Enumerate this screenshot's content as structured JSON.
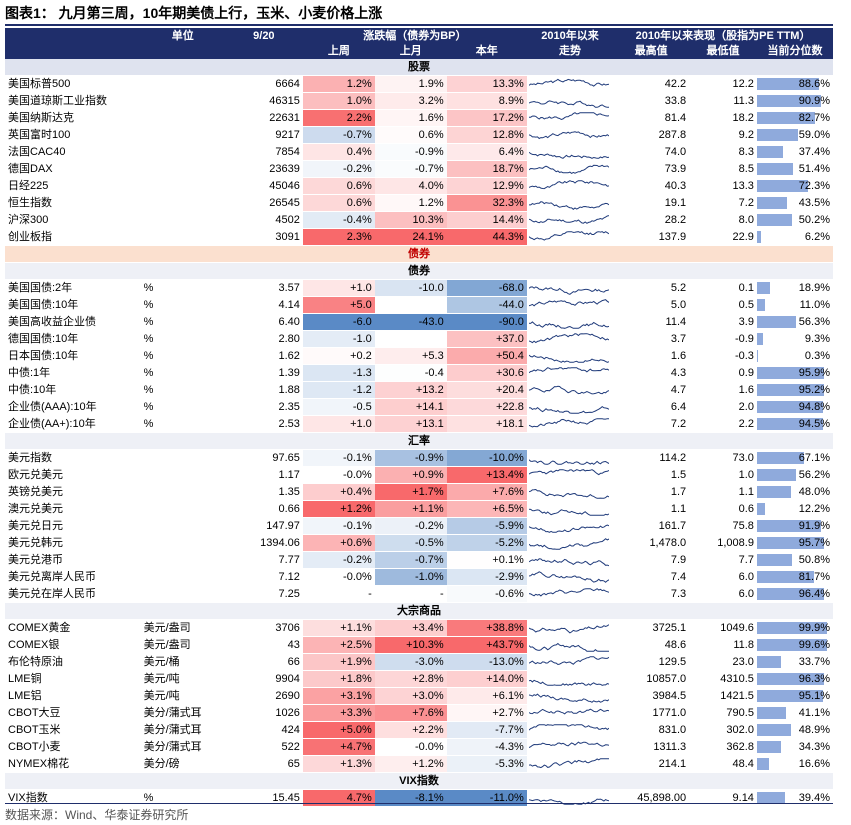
{
  "title": "图表1：  九月第三周，10年期美债上行，玉米、小麦价格上涨",
  "footer": "数据来源：Wind、华泰证券研究所",
  "header": {
    "unit": "单位",
    "date": "9/20",
    "change_group": "涨跌幅（债券为BP）",
    "since2010": "2010年以来",
    "perf_group": "2010年以来表现（股指为PE TTM）",
    "last_week": "上周",
    "last_month": "上月",
    "ytd": "本年",
    "trend": "走势",
    "high": "最高值",
    "low": "最低值",
    "pct": "当前分位数"
  },
  "colors": {
    "red": "#f8696b",
    "blue": "#5a8ac6",
    "bar": "#8faadc",
    "header": "#1f2e6b"
  },
  "sections": [
    {
      "title": "股票",
      "style": "main",
      "rows": [
        {
          "name": "美国标普500",
          "unit": "",
          "value": "6664",
          "wk": "1.2%",
          "mo": "1.9%",
          "ytd": "13.3%",
          "wkv": 1.2,
          "mov": 1.9,
          "ytdv": 13.3,
          "high": "42.2",
          "low": "12.2",
          "pct": "88.6%",
          "pctv": 88.6
        },
        {
          "name": "美国道琼斯工业指数",
          "unit": "",
          "value": "46315",
          "wk": "1.0%",
          "mo": "3.2%",
          "ytd": "8.9%",
          "wkv": 1.0,
          "mov": 3.2,
          "ytdv": 8.9,
          "high": "33.8",
          "low": "11.3",
          "pct": "90.9%",
          "pctv": 90.9
        },
        {
          "name": "美国纳斯达克",
          "unit": "",
          "value": "22631",
          "wk": "2.2%",
          "mo": "1.6%",
          "ytd": "17.2%",
          "wkv": 2.2,
          "mov": 1.6,
          "ytdv": 17.2,
          "high": "81.4",
          "low": "18.2",
          "pct": "82.7%",
          "pctv": 82.7
        },
        {
          "name": "英国富时100",
          "unit": "",
          "value": "9217",
          "wk": "-0.7%",
          "mo": "0.6%",
          "ytd": "12.8%",
          "wkv": -0.7,
          "mov": 0.6,
          "ytdv": 12.8,
          "high": "287.8",
          "low": "9.2",
          "pct": "59.0%",
          "pctv": 59.0
        },
        {
          "name": "法国CAC40",
          "unit": "",
          "value": "7854",
          "wk": "0.4%",
          "mo": "-0.9%",
          "ytd": "6.4%",
          "wkv": 0.4,
          "mov": -0.9,
          "ytdv": 6.4,
          "high": "74.0",
          "low": "8.3",
          "pct": "37.4%",
          "pctv": 37.4
        },
        {
          "name": "德国DAX",
          "unit": "",
          "value": "23639",
          "wk": "-0.2%",
          "mo": "-0.7%",
          "ytd": "18.7%",
          "wkv": -0.2,
          "mov": -0.7,
          "ytdv": 18.7,
          "high": "73.9",
          "low": "8.5",
          "pct": "51.4%",
          "pctv": 51.4
        },
        {
          "name": "日经225",
          "unit": "",
          "value": "45046",
          "wk": "0.6%",
          "mo": "4.0%",
          "ytd": "12.9%",
          "wkv": 0.6,
          "mov": 4.0,
          "ytdv": 12.9,
          "high": "40.3",
          "low": "13.3",
          "pct": "72.3%",
          "pctv": 72.3
        },
        {
          "name": "恒生指数",
          "unit": "",
          "value": "26545",
          "wk": "0.6%",
          "mo": "1.2%",
          "ytd": "32.3%",
          "wkv": 0.6,
          "mov": 1.2,
          "ytdv": 32.3,
          "high": "19.1",
          "low": "7.2",
          "pct": "43.5%",
          "pctv": 43.5
        },
        {
          "name": "沪深300",
          "unit": "",
          "value": "4502",
          "wk": "-0.4%",
          "mo": "10.3%",
          "ytd": "14.4%",
          "wkv": -0.4,
          "mov": 10.3,
          "ytdv": 14.4,
          "high": "28.2",
          "low": "8.0",
          "pct": "50.2%",
          "pctv": 50.2
        },
        {
          "name": "创业板指",
          "unit": "",
          "value": "3091",
          "wk": "2.3%",
          "mo": "24.1%",
          "ytd": "44.3%",
          "wkv": 2.3,
          "mov": 24.1,
          "ytdv": 44.3,
          "high": "137.9",
          "low": "22.9",
          "pct": "6.2%",
          "pctv": 6.2
        }
      ]
    },
    {
      "title": "债券",
      "style": "bond",
      "rows": []
    },
    {
      "title": "债券",
      "style": "sub",
      "rows": [
        {
          "name": "美国国债:2年",
          "unit": "%",
          "value": "3.57",
          "wk": "+1.0",
          "mo": "-10.0",
          "ytd": "-68.0",
          "wkv": 1.0,
          "mov": -10.0,
          "ytdv": -68.0,
          "high": "5.2",
          "low": "0.1",
          "pct": "18.9%",
          "pctv": 18.9
        },
        {
          "name": "美国国债:10年",
          "unit": "%",
          "value": "4.14",
          "wk": "+5.0",
          "mo": "",
          "ytd": "-44.0",
          "wkv": 5.0,
          "mov": 0,
          "ytdv": -44.0,
          "high": "5.0",
          "low": "0.5",
          "pct": "11.0%",
          "pctv": 11.0
        },
        {
          "name": "美国高收益企业债",
          "unit": "%",
          "value": "6.40",
          "wk": "-6.0",
          "mo": "-43.0",
          "ytd": "-90.0",
          "wkv": -6.0,
          "mov": -43.0,
          "ytdv": -90.0,
          "high": "11.4",
          "low": "3.9",
          "pct": "56.3%",
          "pctv": 56.3
        },
        {
          "name": "德国国债:10年",
          "unit": "%",
          "value": "2.80",
          "wk": "-1.0",
          "mo": "",
          "ytd": "+37.0",
          "wkv": -1.0,
          "mov": 0,
          "ytdv": 37.0,
          "high": "3.7",
          "low": "-0.9",
          "pct": "9.3%",
          "pctv": 9.3
        },
        {
          "name": "日本国债:10年",
          "unit": "%",
          "value": "1.62",
          "wk": "+0.2",
          "mo": "+5.3",
          "ytd": "+50.4",
          "wkv": 0.2,
          "mov": 5.3,
          "ytdv": 50.4,
          "high": "1.6",
          "low": "-0.3",
          "pct": "0.3%",
          "pctv": 0.3
        },
        {
          "name": "中债:1年",
          "unit": "%",
          "value": "1.39",
          "wk": "-1.3",
          "mo": "-0.4",
          "ytd": "+30.6",
          "wkv": -1.3,
          "mov": -0.4,
          "ytdv": 30.6,
          "high": "4.3",
          "low": "0.9",
          "pct": "95.9%",
          "pctv": 95.9
        },
        {
          "name": "中债:10年",
          "unit": "%",
          "value": "1.88",
          "wk": "-1.2",
          "mo": "+13.2",
          "ytd": "+20.4",
          "wkv": -1.2,
          "mov": 13.2,
          "ytdv": 20.4,
          "high": "4.7",
          "low": "1.6",
          "pct": "95.2%",
          "pctv": 95.2
        },
        {
          "name": "企业债(AAA):10年",
          "unit": "%",
          "value": "2.35",
          "wk": "-0.5",
          "mo": "+14.1",
          "ytd": "+22.8",
          "wkv": -0.5,
          "mov": 14.1,
          "ytdv": 22.8,
          "high": "6.4",
          "low": "2.0",
          "pct": "94.8%",
          "pctv": 94.8
        },
        {
          "name": "企业债(AA+):10年",
          "unit": "%",
          "value": "2.53",
          "wk": "+1.0",
          "mo": "+13.1",
          "ytd": "+18.1",
          "wkv": 1.0,
          "mov": 13.1,
          "ytdv": 18.1,
          "high": "7.2",
          "low": "2.2",
          "pct": "94.5%",
          "pctv": 94.5
        }
      ]
    },
    {
      "title": "汇率",
      "style": "sub",
      "rows": [
        {
          "name": "美元指数",
          "unit": "",
          "value": "97.65",
          "wk": "-0.1%",
          "mo": "-0.9%",
          "ytd": "-10.0%",
          "wkv": -0.1,
          "mov": -0.9,
          "ytdv": -10.0,
          "high": "114.2",
          "low": "73.0",
          "pct": "67.1%",
          "pctv": 67.1
        },
        {
          "name": "欧元兑美元",
          "unit": "",
          "value": "1.17",
          "wk": "-0.0%",
          "mo": "+0.9%",
          "ytd": "+13.4%",
          "wkv": -0.0,
          "mov": 0.9,
          "ytdv": 13.4,
          "high": "1.5",
          "low": "1.0",
          "pct": "56.2%",
          "pctv": 56.2
        },
        {
          "name": "英镑兑美元",
          "unit": "",
          "value": "1.35",
          "wk": "+0.4%",
          "mo": "+1.7%",
          "ytd": "+7.6%",
          "wkv": 0.4,
          "mov": 1.7,
          "ytdv": 7.6,
          "high": "1.7",
          "low": "1.1",
          "pct": "48.0%",
          "pctv": 48.0
        },
        {
          "name": "澳元兑美元",
          "unit": "",
          "value": "0.66",
          "wk": "+1.2%",
          "mo": "+1.1%",
          "ytd": "+6.5%",
          "wkv": 1.2,
          "mov": 1.1,
          "ytdv": 6.5,
          "high": "1.1",
          "low": "0.6",
          "pct": "12.2%",
          "pctv": 12.2
        },
        {
          "name": "美元兑日元",
          "unit": "",
          "value": "147.97",
          "wk": "-0.1%",
          "mo": "-0.2%",
          "ytd": "-5.9%",
          "wkv": -0.1,
          "mov": -0.2,
          "ytdv": -5.9,
          "high": "161.7",
          "low": "75.8",
          "pct": "91.9%",
          "pctv": 91.9
        },
        {
          "name": "美元兑韩元",
          "unit": "",
          "value": "1394.06",
          "wk": "+0.6%",
          "mo": "-0.5%",
          "ytd": "-5.2%",
          "wkv": 0.6,
          "mov": -0.5,
          "ytdv": -5.2,
          "high": "1,478.0",
          "low": "1,008.9",
          "pct": "95.7%",
          "pctv": 95.7
        },
        {
          "name": "美元兑港币",
          "unit": "",
          "value": "7.77",
          "wk": "-0.2%",
          "mo": "-0.7%",
          "ytd": "+0.1%",
          "wkv": -0.2,
          "mov": -0.7,
          "ytdv": 0.1,
          "high": "7.9",
          "low": "7.7",
          "pct": "50.8%",
          "pctv": 50.8
        },
        {
          "name": "美元兑离岸人民币",
          "unit": "",
          "value": "7.12",
          "wk": "-0.0%",
          "mo": "-1.0%",
          "ytd": "-2.9%",
          "wkv": -0.0,
          "mov": -1.0,
          "ytdv": -2.9,
          "high": "7.4",
          "low": "6.0",
          "pct": "81.7%",
          "pctv": 81.7
        },
        {
          "name": "美元兑在岸人民币",
          "unit": "",
          "value": "7.25",
          "wk": "-",
          "mo": "-",
          "ytd": "-0.6%",
          "wkv": 0,
          "mov": 0,
          "ytdv": -0.6,
          "high": "7.3",
          "low": "6.0",
          "pct": "96.4%",
          "pctv": 96.4
        }
      ]
    },
    {
      "title": "大宗商品",
      "style": "sub",
      "rows": [
        {
          "name": "COMEX黄金",
          "unit": "美元/盎司",
          "value": "3706",
          "wk": "+1.1%",
          "mo": "+3.4%",
          "ytd": "+38.8%",
          "wkv": 1.1,
          "mov": 3.4,
          "ytdv": 38.8,
          "high": "3725.1",
          "low": "1049.6",
          "pct": "99.9%",
          "pctv": 99.9
        },
        {
          "name": "COMEX银",
          "unit": "美元/盎司",
          "value": "43",
          "wk": "+2.5%",
          "mo": "+10.3%",
          "ytd": "+43.7%",
          "wkv": 2.5,
          "mov": 10.3,
          "ytdv": 43.7,
          "high": "48.6",
          "low": "11.8",
          "pct": "99.6%",
          "pctv": 99.6
        },
        {
          "name": "布伦特原油",
          "unit": "美元/桶",
          "value": "66",
          "wk": "+1.9%",
          "mo": "-3.0%",
          "ytd": "-13.0%",
          "wkv": 1.9,
          "mov": -3.0,
          "ytdv": -13.0,
          "high": "129.5",
          "low": "23.0",
          "pct": "33.7%",
          "pctv": 33.7
        },
        {
          "name": "LME铜",
          "unit": "美元/吨",
          "value": "9904",
          "wk": "+1.8%",
          "mo": "+2.8%",
          "ytd": "+14.0%",
          "wkv": 1.8,
          "mov": 2.8,
          "ytdv": 14.0,
          "high": "10857.0",
          "low": "4310.5",
          "pct": "96.3%",
          "pctv": 96.3
        },
        {
          "name": "LME铝",
          "unit": "美元/吨",
          "value": "2690",
          "wk": "+3.1%",
          "mo": "+3.0%",
          "ytd": "+6.1%",
          "wkv": 3.1,
          "mov": 3.0,
          "ytdv": 6.1,
          "high": "3984.5",
          "low": "1421.5",
          "pct": "95.1%",
          "pctv": 95.1
        },
        {
          "name": "CBOT大豆",
          "unit": "美分/蒲式耳",
          "value": "1026",
          "wk": "+3.3%",
          "mo": "+7.6%",
          "ytd": "+2.7%",
          "wkv": 3.3,
          "mov": 7.6,
          "ytdv": 2.7,
          "high": "1771.0",
          "low": "790.5",
          "pct": "41.1%",
          "pctv": 41.1
        },
        {
          "name": "CBOT玉米",
          "unit": "美分/蒲式耳",
          "value": "424",
          "wk": "+5.0%",
          "mo": "+2.2%",
          "ytd": "-7.7%",
          "wkv": 5.0,
          "mov": 2.2,
          "ytdv": -7.7,
          "high": "831.0",
          "low": "302.0",
          "pct": "48.9%",
          "pctv": 48.9
        },
        {
          "name": "CBOT小麦",
          "unit": "美分/蒲式耳",
          "value": "522",
          "wk": "+4.7%",
          "mo": "-0.0%",
          "ytd": "-4.3%",
          "wkv": 4.7,
          "mov": -0.0,
          "ytdv": -4.3,
          "high": "1311.3",
          "low": "362.8",
          "pct": "34.3%",
          "pctv": 34.3
        },
        {
          "name": "NYMEX棉花",
          "unit": "美分/磅",
          "value": "65",
          "wk": "+1.3%",
          "mo": "+1.2%",
          "ytd": "-5.3%",
          "wkv": 1.3,
          "mov": 1.2,
          "ytdv": -5.3,
          "high": "214.1",
          "low": "48.4",
          "pct": "16.6%",
          "pctv": 16.6
        }
      ]
    },
    {
      "title": "VIX指数",
      "style": "sub",
      "rows": [
        {
          "name": "VIX指数",
          "unit": "%",
          "value": "15.45",
          "wk": "4.7%",
          "mo": "-8.1%",
          "ytd": "-11.0%",
          "wkv": 4.7,
          "mov": -8.1,
          "ytdv": -11.0,
          "high": "45,898.00",
          "low": "9.14",
          "pct": "39.4%",
          "pctv": 39.4
        }
      ]
    }
  ]
}
